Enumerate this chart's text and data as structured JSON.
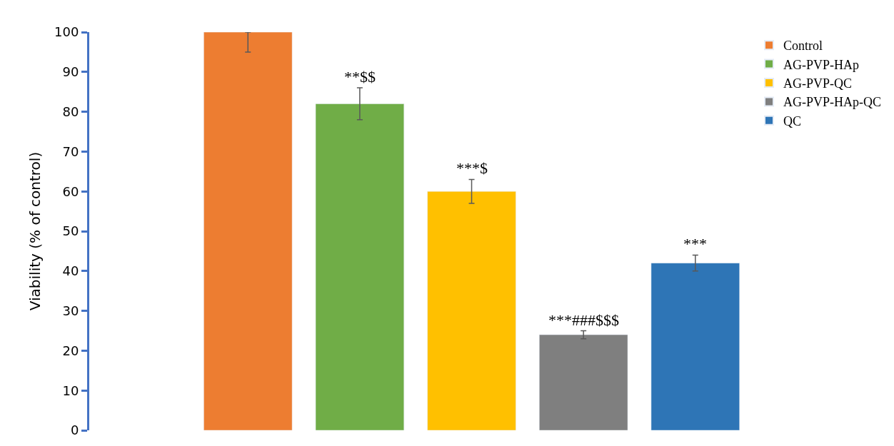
{
  "chart_data": {
    "type": "bar",
    "ylabel": "Viability (% of control)",
    "categories": [
      null
    ],
    "series": [
      {
        "name": "Control",
        "color": "#ed7d31",
        "values": [
          100
        ],
        "errors": [
          [
            95,
            100
          ]
        ]
      },
      {
        "name": "AG-PVP-HAp",
        "color": "#70ad47",
        "values": [
          82
        ],
        "errors": [
          [
            78,
            86
          ]
        ],
        "value_labels": [
          "**$$"
        ]
      },
      {
        "name": "AG-PVP-QC",
        "color": "#ffc000",
        "values": [
          60
        ],
        "errors": [
          [
            57,
            63
          ]
        ],
        "value_labels": [
          "***$"
        ]
      },
      {
        "name": "AG-PVP-HAp-QC",
        "color": "#7f7f7f",
        "values": [
          24
        ],
        "errors": [
          [
            23,
            25
          ]
        ],
        "value_labels": [
          "***###$$$"
        ]
      },
      {
        "name": "QC",
        "color": "#2e75b6",
        "values": [
          42
        ],
        "errors": [
          [
            40,
            44
          ]
        ],
        "value_labels": [
          "***"
        ]
      }
    ],
    "ylim": [
      0,
      100
    ],
    "yticks": [
      0,
      10,
      20,
      30,
      40,
      50,
      60,
      70,
      80,
      90,
      100
    ],
    "grid": false,
    "legend": "top right"
  }
}
